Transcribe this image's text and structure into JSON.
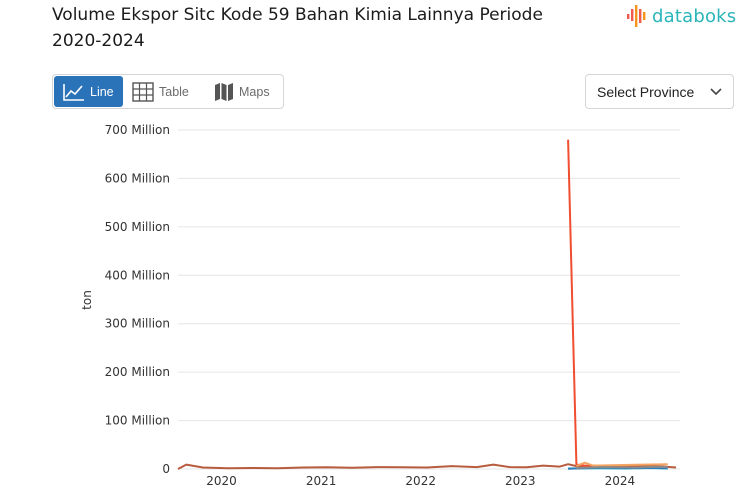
{
  "title": "Volume Ekspor Sitc Kode 59 Bahan Kimia Lainnya Periode 2020-2024",
  "logo": {
    "text": "databoks",
    "icon": "databoks-bars-icon"
  },
  "tabs": [
    {
      "label": "Line",
      "icon": "line-chart-icon",
      "active": true
    },
    {
      "label": "Table",
      "icon": "table-grid-icon",
      "active": false
    },
    {
      "label": "Maps",
      "icon": "map-icon",
      "active": false
    }
  ],
  "province_select": {
    "value": "Select Province",
    "icon": "chevron-down-icon"
  },
  "colors": {
    "accent": "#2b73b8",
    "brand": "#2bb5b9",
    "grid": "#e6e6e6"
  },
  "chart_data": {
    "type": "line",
    "title": "Volume Ekspor Sitc Kode 59 Bahan Kimia Lainnya Periode 2020-2024",
    "ylabel": "ton",
    "xlabel": "",
    "ylim": [
      0,
      700000000
    ],
    "yticks": [
      {
        "value": 0,
        "label": "0"
      },
      {
        "value": 100000000,
        "label": "100 Million"
      },
      {
        "value": 200000000,
        "label": "200 Million"
      },
      {
        "value": 300000000,
        "label": "300 Million"
      },
      {
        "value": 400000000,
        "label": "400 Million"
      },
      {
        "value": 500000000,
        "label": "500 Million"
      },
      {
        "value": 600000000,
        "label": "600 Million"
      },
      {
        "value": 700000000,
        "label": "700 Million"
      }
    ],
    "xlim": [
      "2019-08",
      "2024-08"
    ],
    "xticks": [
      {
        "value": "2020-01",
        "label": "2020"
      },
      {
        "value": "2021-01",
        "label": "2021"
      },
      {
        "value": "2022-01",
        "label": "2022"
      },
      {
        "value": "2023-01",
        "label": "2023"
      },
      {
        "value": "2024-01",
        "label": "2024"
      }
    ],
    "grid": true,
    "series": [
      {
        "color": "#b85c3e",
        "points": [
          [
            "2019-08",
            0
          ],
          [
            "2019-09",
            9000000
          ],
          [
            "2019-11",
            3000000
          ],
          [
            "2020-02",
            1500000
          ],
          [
            "2020-05",
            2000000
          ],
          [
            "2020-08",
            1500000
          ],
          [
            "2020-11",
            3000000
          ],
          [
            "2021-02",
            3500000
          ],
          [
            "2021-05",
            2500000
          ],
          [
            "2021-08",
            4000000
          ],
          [
            "2021-11",
            3500000
          ],
          [
            "2022-02",
            3000000
          ],
          [
            "2022-05",
            6000000
          ],
          [
            "2022-08",
            4000000
          ],
          [
            "2022-10",
            9000000
          ],
          [
            "2022-12",
            4000000
          ],
          [
            "2023-02",
            3500000
          ],
          [
            "2023-04",
            7000000
          ],
          [
            "2023-06",
            5000000
          ],
          [
            "2023-07",
            10000000
          ],
          [
            "2023-08",
            6000000
          ],
          [
            "2023-10",
            7000000
          ],
          [
            "2024-02",
            5000000
          ],
          [
            "2024-05",
            7000000
          ],
          [
            "2024-08",
            3000000
          ]
        ]
      },
      {
        "color": "#f04e30",
        "points": [
          [
            "2023-07",
            680000000
          ],
          [
            "2023-08",
            9000000
          ],
          [
            "2023-10",
            5000000
          ],
          [
            "2024-01",
            4000000
          ],
          [
            "2024-04",
            3000000
          ],
          [
            "2024-07",
            2000000
          ]
        ]
      },
      {
        "color": "#f4a460",
        "points": [
          [
            "2023-08",
            6000000
          ],
          [
            "2023-09",
            13000000
          ],
          [
            "2023-10",
            7000000
          ],
          [
            "2024-01",
            8000000
          ],
          [
            "2024-04",
            9000000
          ],
          [
            "2024-07",
            10000000
          ]
        ]
      },
      {
        "color": "#1fa3c7",
        "points": [
          [
            "2023-07",
            1000000
          ],
          [
            "2023-11",
            1500000
          ],
          [
            "2024-02",
            1000000
          ],
          [
            "2024-05",
            2000000
          ],
          [
            "2024-07",
            1000000
          ]
        ]
      },
      {
        "color": "#2b7bb8",
        "points": [
          [
            "2023-07",
            500000
          ],
          [
            "2023-11",
            3000000
          ],
          [
            "2024-02",
            2000000
          ],
          [
            "2024-05",
            2500000
          ],
          [
            "2024-07",
            1500000
          ]
        ]
      },
      {
        "color": "#8a8a8a",
        "points": [
          [
            "2023-08",
            2000000
          ],
          [
            "2023-11",
            4000000
          ],
          [
            "2024-03",
            3000000
          ],
          [
            "2024-06",
            4500000
          ],
          [
            "2024-07",
            3500000
          ]
        ]
      }
    ]
  }
}
